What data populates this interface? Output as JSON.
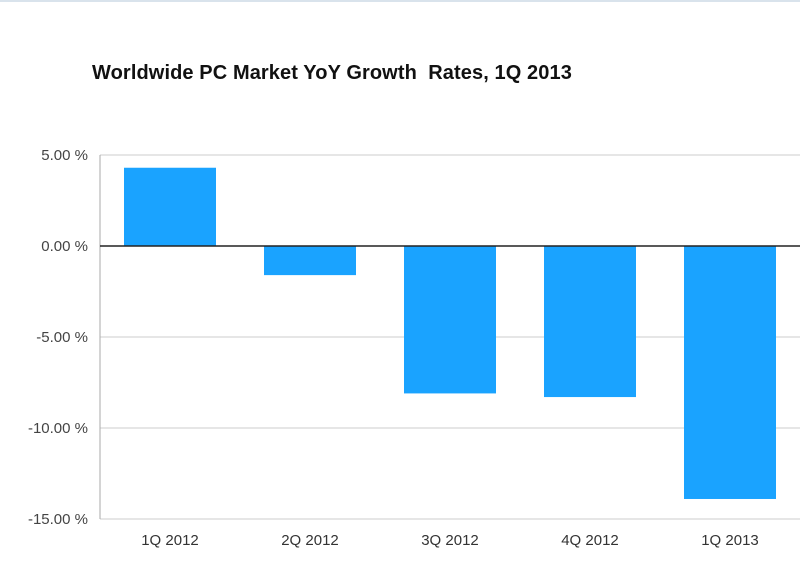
{
  "chart_data": {
    "type": "bar",
    "title": "Worldwide PC Market YoY Growth  Rates, 1Q 2013",
    "xlabel": "",
    "ylabel": "",
    "categories": [
      "1Q 2012",
      "2Q 2012",
      "3Q 2012",
      "4Q 2012",
      "1Q 2013"
    ],
    "values": [
      4.3,
      -1.6,
      -8.1,
      -8.3,
      -13.9
    ],
    "ylim": [
      -15,
      5
    ],
    "yticks": [
      5,
      0,
      -5,
      -10,
      -15
    ],
    "ytick_labels": [
      "5.00 %",
      "0.00 %",
      "-5.00 %",
      "-10.00 %",
      "-15.00 %"
    ],
    "grid": true,
    "legend": "none",
    "colors": {
      "bar": "#1aa3ff",
      "grid": "#cccccc",
      "zero_line": "#222222",
      "axis": "#aaaaaa"
    }
  }
}
